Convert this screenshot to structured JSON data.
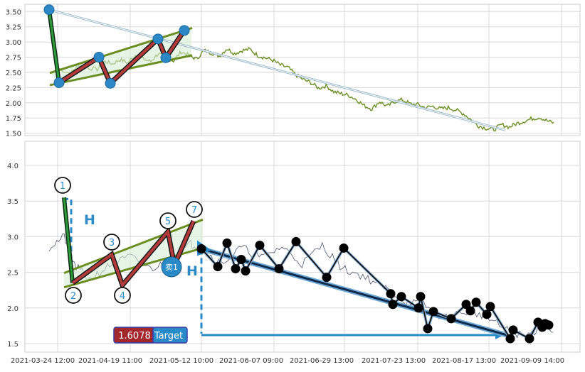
{
  "chart_data": [
    {
      "type": "line",
      "title": "",
      "y_ticks": [
        "3.50",
        "3.25",
        "3.00",
        "2.75",
        "2.50",
        "2.25",
        "2.00",
        "1.75",
        "1.50"
      ],
      "ylim": [
        1.46,
        3.62
      ],
      "grid": true,
      "price_series": {
        "name": "",
        "color": "#6b8e23",
        "points": [
          [
            0.02,
            2.56
          ],
          [
            0.05,
            2.48
          ],
          [
            0.07,
            2.62
          ],
          [
            0.09,
            2.58
          ],
          [
            0.12,
            2.55
          ],
          [
            0.14,
            2.68
          ],
          [
            0.16,
            2.64
          ],
          [
            0.18,
            2.71
          ],
          [
            0.2,
            2.66
          ],
          [
            0.22,
            2.78
          ],
          [
            0.24,
            2.72
          ],
          [
            0.26,
            2.68
          ],
          [
            0.28,
            2.81
          ],
          [
            0.3,
            2.74
          ],
          [
            0.32,
            2.69
          ],
          [
            0.34,
            2.84
          ],
          [
            0.36,
            2.78
          ],
          [
            0.38,
            2.72
          ],
          [
            0.4,
            2.86
          ],
          [
            0.42,
            2.82
          ],
          [
            0.44,
            2.77
          ],
          [
            0.46,
            2.89
          ],
          [
            0.48,
            2.81
          ],
          [
            0.5,
            2.86
          ],
          [
            0.52,
            2.88
          ],
          [
            0.54,
            2.78
          ],
          [
            0.56,
            2.74
          ],
          [
            0.58,
            2.7
          ],
          [
            0.6,
            2.62
          ],
          [
            0.62,
            2.58
          ],
          [
            0.64,
            2.46
          ],
          [
            0.66,
            2.38
          ],
          [
            0.68,
            2.33
          ],
          [
            0.7,
            2.24
          ],
          [
            0.72,
            2.28
          ],
          [
            0.74,
            2.18
          ],
          [
            0.76,
            2.15
          ],
          [
            0.78,
            2.12
          ],
          [
            0.8,
            2.05
          ],
          [
            0.82,
            1.95
          ],
          [
            0.84,
            1.9
          ],
          [
            0.86,
            2.02
          ],
          [
            0.88,
            1.94
          ],
          [
            0.9,
            2.02
          ],
          [
            0.92,
            2.05
          ],
          [
            0.94,
            1.98
          ],
          [
            0.96,
            1.97
          ],
          [
            0.98,
            1.92
          ],
          [
            1.0,
            1.94
          ],
          [
            1.02,
            1.9
          ],
          [
            1.04,
            1.92
          ],
          [
            1.06,
            1.88
          ],
          [
            1.08,
            1.82
          ],
          [
            1.1,
            1.72
          ],
          [
            1.12,
            1.62
          ],
          [
            1.14,
            1.58
          ],
          [
            1.16,
            1.56
          ],
          [
            1.18,
            1.64
          ],
          [
            1.2,
            1.6
          ],
          [
            1.22,
            1.66
          ],
          [
            1.24,
            1.7
          ],
          [
            1.26,
            1.74
          ],
          [
            1.28,
            1.76
          ],
          [
            1.3,
            1.7
          ],
          [
            1.32,
            1.66
          ]
        ]
      },
      "pattern_points": [
        [
          0,
          3.53
        ],
        [
          1,
          2.33
        ],
        [
          2,
          2.75
        ],
        [
          3,
          2.32
        ],
        [
          4,
          3.05
        ],
        [
          5,
          2.74
        ],
        [
          6,
          3.19
        ]
      ],
      "trend_line": [
        [
          0,
          3.53
        ],
        [
          46,
          1.56
        ]
      ]
    },
    {
      "type": "line",
      "title": "",
      "x_ticks": [
        "2021-03-24 12:00",
        "2021-04-19 11:00",
        "2021-05-12 10:00",
        "2021-06-07 09:00",
        "2021-06-29 13:00",
        "2021-07-23 13:00",
        "2021-08-17 13:00",
        "2021-09-09 14:00"
      ],
      "y_ticks": [
        "4.0",
        "3.5",
        "3.0",
        "2.5",
        "2.0",
        "1.5"
      ],
      "ylim": [
        1.45,
        4.3
      ],
      "grid": true,
      "pattern_labels": [
        "1",
        "2",
        "3",
        "4",
        "5",
        "7"
      ],
      "height_label": "H",
      "sell_label": "卖1",
      "price_badge": "1.6078",
      "target_label": "Target",
      "pivot_points": [
        [
          2.83,
          2.83
        ],
        [
          2.58,
          2.58
        ],
        [
          2.91,
          2.91
        ],
        [
          2.55,
          2.55
        ],
        [
          2.68,
          2.68
        ],
        [
          2.52,
          2.52
        ],
        [
          2.88,
          2.88
        ],
        [
          2.55,
          2.55
        ],
        [
          2.93,
          2.93
        ],
        [
          2.43,
          2.43
        ],
        [
          2.84,
          2.84
        ],
        [
          2.2,
          2.2
        ],
        [
          2.05,
          2.05
        ],
        [
          2.16,
          2.16
        ],
        [
          2.0,
          2.0
        ],
        [
          2.16,
          2.16
        ],
        [
          1.71,
          1.71
        ],
        [
          1.95,
          1.95
        ],
        [
          1.85,
          1.85
        ],
        [
          2.05,
          2.05
        ],
        [
          1.96,
          1.96
        ],
        [
          2.08,
          2.08
        ],
        [
          1.91,
          1.91
        ],
        [
          2.02,
          2.02
        ],
        [
          1.57,
          1.57
        ],
        [
          1.69,
          1.69
        ],
        [
          1.57,
          1.57
        ],
        [
          1.8,
          1.8
        ],
        [
          1.73,
          1.73
        ],
        [
          1.78,
          1.78
        ],
        [
          1.76,
          1.76
        ]
      ],
      "target_value": 1.6078
    }
  ]
}
